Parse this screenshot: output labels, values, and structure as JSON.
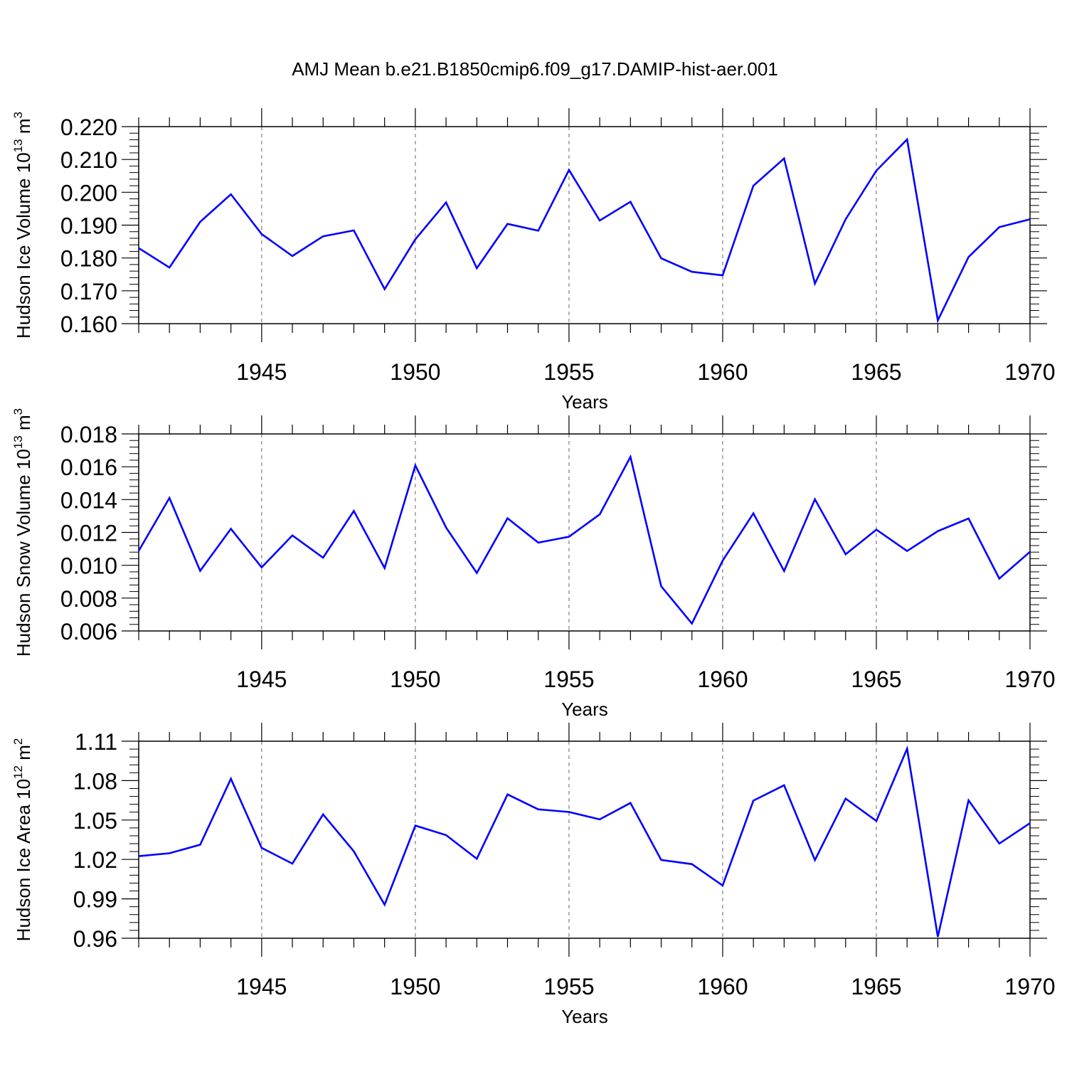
{
  "title": "AMJ Mean b.e21.B1850cmip6.f09_g17.DAMIP-hist-aer.001",
  "colors": {
    "line": "#0000ff",
    "axis": "#000000",
    "grid": "#7f7f7f",
    "background": "#ffffff"
  },
  "chart_data": [
    {
      "type": "line",
      "ylabel": {
        "main": "Hudson Ice Volume 10",
        "sup": "13",
        "unit": " m",
        "unit_sup": "3"
      },
      "xlabel": "Years",
      "xlim": [
        1941,
        1970
      ],
      "ylim": [
        0.16,
        0.22
      ],
      "xticks": [
        1945,
        1950,
        1955,
        1960,
        1965,
        1970
      ],
      "yticks": [
        "0.160",
        "0.170",
        "0.180",
        "0.190",
        "0.200",
        "0.210",
        "0.220"
      ],
      "grid": "vertical dashed at major x ticks",
      "x": [
        1941,
        1942,
        1943,
        1944,
        1945,
        1946,
        1947,
        1948,
        1949,
        1950,
        1951,
        1952,
        1953,
        1954,
        1955,
        1956,
        1957,
        1958,
        1959,
        1960,
        1961,
        1962,
        1963,
        1964,
        1965,
        1966,
        1967,
        1968,
        1969,
        1970
      ],
      "series": [
        {
          "values": [
            0.183,
            0.1771,
            0.191,
            0.1994,
            0.1873,
            0.1806,
            0.1866,
            0.1884,
            0.1705,
            0.1857,
            0.1969,
            0.1769,
            0.1904,
            0.1883,
            0.2068,
            0.1914,
            0.1971,
            0.1799,
            0.1758,
            0.1747,
            0.202,
            0.2103,
            0.1722,
            0.1918,
            0.2066,
            0.2161,
            0.161,
            0.1803,
            0.1894,
            0.1918
          ]
        }
      ]
    },
    {
      "type": "line",
      "ylabel": {
        "main": "Hudson Snow Volume 10",
        "sup": "13",
        "unit": " m",
        "unit_sup": "3"
      },
      "xlabel": "Years",
      "xlim": [
        1941,
        1970
      ],
      "ylim": [
        0.006,
        0.018
      ],
      "xticks": [
        1945,
        1950,
        1955,
        1960,
        1965,
        1970
      ],
      "yticks": [
        "0.006",
        "0.008",
        "0.010",
        "0.012",
        "0.014",
        "0.016",
        "0.018"
      ],
      "grid": "vertical dashed at major x ticks",
      "x": [
        1941,
        1942,
        1943,
        1944,
        1945,
        1946,
        1947,
        1948,
        1949,
        1950,
        1951,
        1952,
        1953,
        1954,
        1955,
        1956,
        1957,
        1958,
        1959,
        1960,
        1961,
        1962,
        1963,
        1964,
        1965,
        1966,
        1967,
        1968,
        1969,
        1970
      ],
      "series": [
        {
          "values": [
            0.01088,
            0.0141,
            0.00966,
            0.01222,
            0.00987,
            0.01182,
            0.01046,
            0.01331,
            0.00983,
            0.01608,
            0.0123,
            0.00953,
            0.01286,
            0.01138,
            0.01174,
            0.0131,
            0.0166,
            0.00872,
            0.00645,
            0.01028,
            0.01316,
            0.00965,
            0.01402,
            0.01067,
            0.01217,
            0.01087,
            0.01208,
            0.01285,
            0.00919,
            0.01082
          ]
        }
      ]
    },
    {
      "type": "line",
      "ylabel": {
        "main": "Hudson Ice Area 10",
        "sup": "12",
        "unit": " m",
        "unit_sup": "2"
      },
      "xlabel": "Years",
      "xlim": [
        1941,
        1970
      ],
      "ylim": [
        0.96,
        1.11
      ],
      "xticks": [
        1945,
        1950,
        1955,
        1960,
        1965,
        1970
      ],
      "yticks": [
        "0.96",
        "0.99",
        "1.02",
        "1.05",
        "1.08",
        "1.11"
      ],
      "grid": "vertical dashed at major x ticks",
      "x": [
        1941,
        1942,
        1943,
        1944,
        1945,
        1946,
        1947,
        1948,
        1949,
        1950,
        1951,
        1952,
        1953,
        1954,
        1955,
        1956,
        1957,
        1958,
        1959,
        1960,
        1961,
        1962,
        1963,
        1964,
        1965,
        1966,
        1967,
        1968,
        1969,
        1970
      ],
      "series": [
        {
          "values": [
            1.0225,
            1.0247,
            1.0312,
            1.0814,
            1.0288,
            1.0168,
            1.0543,
            1.0262,
            0.9855,
            1.0458,
            1.0385,
            1.0205,
            1.0695,
            1.0581,
            1.0561,
            1.0505,
            1.063,
            1.0196,
            1.0164,
            1.0001,
            1.0648,
            1.0765,
            1.0195,
            1.0663,
            1.0493,
            1.1043,
            0.9611,
            1.065,
            1.0321,
            1.0476
          ]
        }
      ]
    }
  ]
}
